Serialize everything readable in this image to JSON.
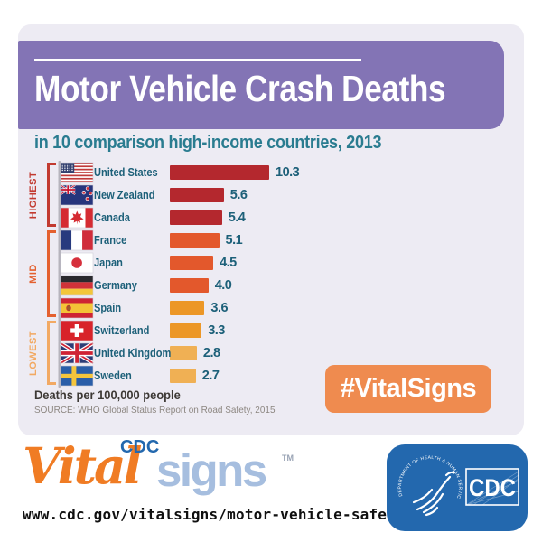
{
  "header": {
    "title": "Motor Vehicle Crash Deaths",
    "subtitle": "in 10 comparison high-income countries, 2013"
  },
  "chart_data": {
    "type": "bar",
    "orientation": "horizontal",
    "title": "Motor Vehicle Crash Deaths in 10 comparison high-income countries, 2013",
    "xlabel": "Deaths per 100,000 people",
    "xlim": [
      0,
      10.3
    ],
    "grid": false,
    "legend": "none",
    "categories": [
      "United States",
      "New Zealand",
      "Canada",
      "France",
      "Japan",
      "Germany",
      "Spain",
      "Switzerland",
      "United Kingdom",
      "Sweden"
    ],
    "values": [
      10.3,
      5.6,
      5.4,
      5.1,
      4.5,
      4.0,
      3.6,
      3.3,
      2.8,
      2.7
    ],
    "value_labels": [
      "10.3",
      "5.6",
      "5.4",
      "5.1",
      "4.5",
      "4.0",
      "3.6",
      "3.3",
      "2.8",
      "2.7"
    ],
    "bar_colors": [
      "#b4282e",
      "#b4282e",
      "#b4282e",
      "#e3582c",
      "#e3582c",
      "#e3582c",
      "#ec9727",
      "#ec9727",
      "#f0b054",
      "#f0b054"
    ],
    "flags": [
      "us",
      "nz",
      "ca",
      "fr",
      "jp",
      "de",
      "es",
      "ch",
      "gb",
      "se"
    ],
    "groups": [
      {
        "label": "HIGHEST",
        "first_row": 0,
        "last_row": 2,
        "color": "#c23a30"
      },
      {
        "label": "MID",
        "first_row": 3,
        "last_row": 6,
        "color": "#e4602f"
      },
      {
        "label": "LOWEST",
        "first_row": 7,
        "last_row": 9,
        "color": "#f2a963"
      }
    ],
    "source": "SOURCE: WHO Global Status Report on Road Safety, 2015"
  },
  "badge": {
    "hashtag": "#VitalSigns",
    "color": "#ef8b4f"
  },
  "footer": {
    "logo": {
      "vital": "Vital",
      "cdc": "CDC",
      "signs": "signs",
      "tm": "TM"
    },
    "url": "www.cdc.gov/vitalsigns/motor-vehicle-safety",
    "hhs_cdc": {
      "acronym": "CDC",
      "seal_text": "DEPARTMENT OF HEALTH & HUMAN SERVICES • USA"
    }
  },
  "colors": {
    "banner_purple": "#8374b5",
    "card_background": "#edebf3",
    "subtitle_teal": "#2a7c90",
    "label_teal": "#1d6079",
    "badge_orange": "#ef8b4f",
    "logo_orange": "#f07c24",
    "logo_light_blue": "#a6bedf",
    "cdc_blue": "#2368ae"
  }
}
